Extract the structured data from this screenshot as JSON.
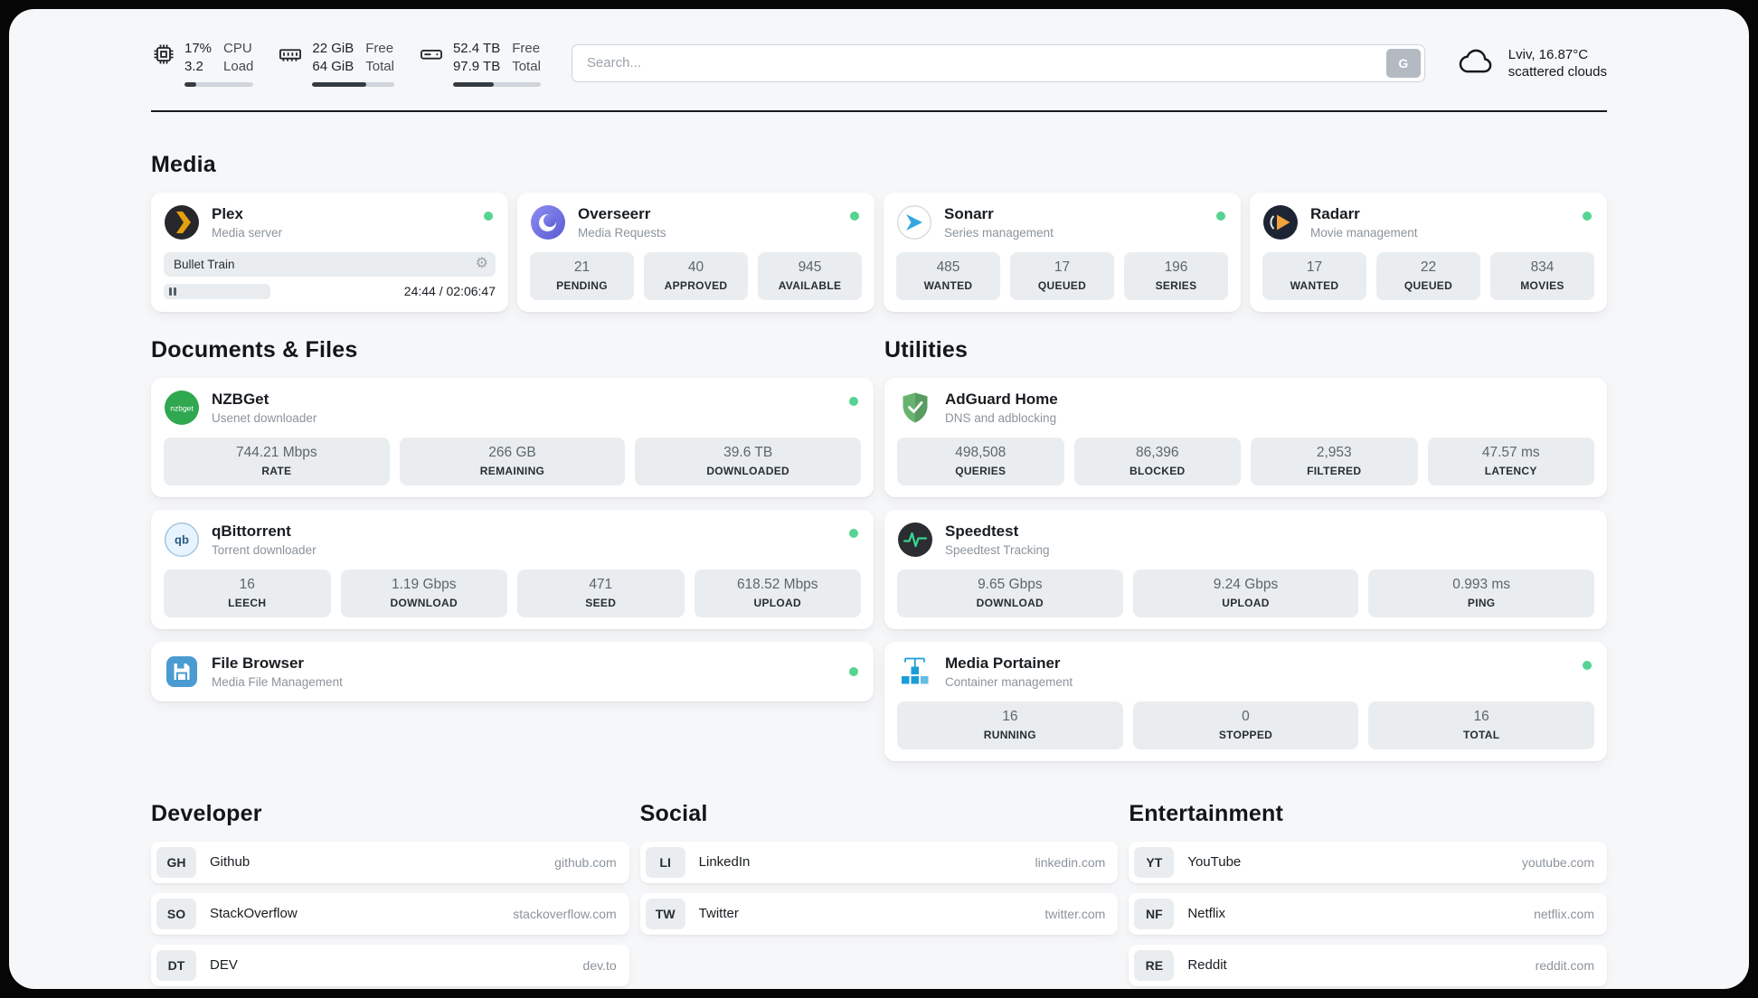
{
  "colors": {
    "status_green": "#55d392"
  },
  "icons": {
    "gear_glyph": "⚙"
  },
  "header": {
    "cpu": {
      "values": [
        "17%",
        "3.2"
      ],
      "labels": [
        "CPU",
        "Load"
      ],
      "progress_pct": 17
    },
    "memory": {
      "values": [
        "22 GiB",
        "64 GiB"
      ],
      "labels": [
        "Free",
        "Total"
      ],
      "progress_pct": 66
    },
    "disk": {
      "values": [
        "52.4 TB",
        "97.9 TB"
      ],
      "labels": [
        "Free",
        "Total"
      ],
      "progress_pct": 46
    },
    "search": {
      "placeholder": "Search...",
      "button": "G"
    },
    "weather": {
      "summary": "Lviv, 16.87°C",
      "condition": "scattered clouds"
    }
  },
  "media": {
    "title": "Media",
    "plex": {
      "name": "Plex",
      "subtitle": "Media server",
      "now_playing": "Bullet Train",
      "time": "24:44 / 02:06:47"
    },
    "overseerr": {
      "name": "Overseerr",
      "subtitle": "Media Requests",
      "stats": [
        {
          "value": "21",
          "label": "PENDING"
        },
        {
          "value": "40",
          "label": "APPROVED"
        },
        {
          "value": "945",
          "label": "AVAILABLE"
        }
      ]
    },
    "sonarr": {
      "name": "Sonarr",
      "subtitle": "Series management",
      "stats": [
        {
          "value": "485",
          "label": "WANTED"
        },
        {
          "value": "17",
          "label": "QUEUED"
        },
        {
          "value": "196",
          "label": "SERIES"
        }
      ]
    },
    "radarr": {
      "name": "Radarr",
      "subtitle": "Movie management",
      "stats": [
        {
          "value": "17",
          "label": "WANTED"
        },
        {
          "value": "22",
          "label": "QUEUED"
        },
        {
          "value": "834",
          "label": "MOVIES"
        }
      ]
    }
  },
  "documents": {
    "title": "Documents & Files",
    "nzbget": {
      "name": "NZBGet",
      "subtitle": "Usenet downloader",
      "stats": [
        {
          "value": "744.21 Mbps",
          "label": "RATE"
        },
        {
          "value": "266 GB",
          "label": "REMAINING"
        },
        {
          "value": "39.6 TB",
          "label": "DOWNLOADED"
        }
      ]
    },
    "qbittorrent": {
      "name": "qBittorrent",
      "subtitle": "Torrent downloader",
      "stats": [
        {
          "value": "16",
          "label": "LEECH"
        },
        {
          "value": "1.19 Gbps",
          "label": "DOWNLOAD"
        },
        {
          "value": "471",
          "label": "SEED"
        },
        {
          "value": "618.52 Mbps",
          "label": "UPLOAD"
        }
      ]
    },
    "filebrowser": {
      "name": "File Browser",
      "subtitle": "Media File Management"
    }
  },
  "utilities": {
    "title": "Utilities",
    "adguard": {
      "name": "AdGuard Home",
      "subtitle": "DNS and adblocking",
      "stats": [
        {
          "value": "498,508",
          "label": "QUERIES"
        },
        {
          "value": "86,396",
          "label": "BLOCKED"
        },
        {
          "value": "2,953",
          "label": "FILTERED"
        },
        {
          "value": "47.57 ms",
          "label": "LATENCY"
        }
      ]
    },
    "speedtest": {
      "name": "Speedtest",
      "subtitle": "Speedtest Tracking",
      "stats": [
        {
          "value": "9.65 Gbps",
          "label": "DOWNLOAD"
        },
        {
          "value": "9.24 Gbps",
          "label": "UPLOAD"
        },
        {
          "value": "0.993 ms",
          "label": "PING"
        }
      ]
    },
    "portainer": {
      "name": "Media Portainer",
      "subtitle": "Container management",
      "stats": [
        {
          "value": "16",
          "label": "RUNNING"
        },
        {
          "value": "0",
          "label": "STOPPED"
        },
        {
          "value": "16",
          "label": "TOTAL"
        }
      ]
    }
  },
  "bookmarks": [
    {
      "title": "Developer",
      "items": [
        {
          "abbr": "GH",
          "name": "Github",
          "url": "github.com"
        },
        {
          "abbr": "SO",
          "name": "StackOverflow",
          "url": "stackoverflow.com"
        },
        {
          "abbr": "DT",
          "name": "DEV",
          "url": "dev.to"
        }
      ]
    },
    {
      "title": "Social",
      "items": [
        {
          "abbr": "LI",
          "name": "LinkedIn",
          "url": "linkedin.com"
        },
        {
          "abbr": "TW",
          "name": "Twitter",
          "url": "twitter.com"
        }
      ]
    },
    {
      "title": "Entertainment",
      "items": [
        {
          "abbr": "YT",
          "name": "YouTube",
          "url": "youtube.com"
        },
        {
          "abbr": "NF",
          "name": "Netflix",
          "url": "netflix.com"
        },
        {
          "abbr": "RE",
          "name": "Reddit",
          "url": "reddit.com"
        }
      ]
    }
  ]
}
